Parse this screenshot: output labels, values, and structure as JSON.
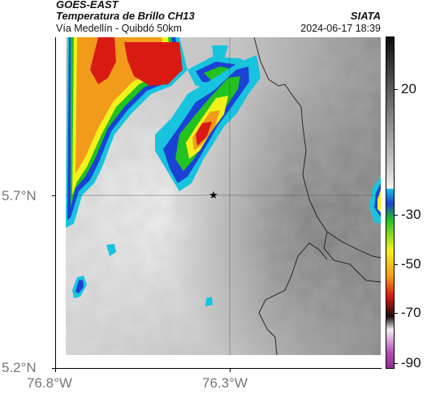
{
  "header": {
    "satellite": "GOES-EAST",
    "product": "Temperatura de Brillo CH13",
    "location": "Vía Medellín - Quibdó 50km",
    "source": "SIATA",
    "datetime": "2024-06-17 18:39"
  },
  "axes": {
    "latitude_labels": [
      "5.7°N",
      "5.2°N"
    ],
    "longitude_labels": [
      "76.8°W",
      "76.3°W"
    ]
  },
  "colorbar": {
    "tick_labels": [
      "20",
      "-30",
      "-50",
      "-70",
      "-90"
    ],
    "colors": {
      "warm_gray_top": "#0d0d0d",
      "cyan": "#17c4de",
      "blue": "#1a43d6",
      "green": "#22c21f",
      "yellow": "#f2f21a",
      "orange": "#f29b1a",
      "red": "#d81a13",
      "black": "#1b0b0b",
      "magenta": "#b34bb4"
    }
  },
  "map": {
    "marker": "star-icon"
  }
}
